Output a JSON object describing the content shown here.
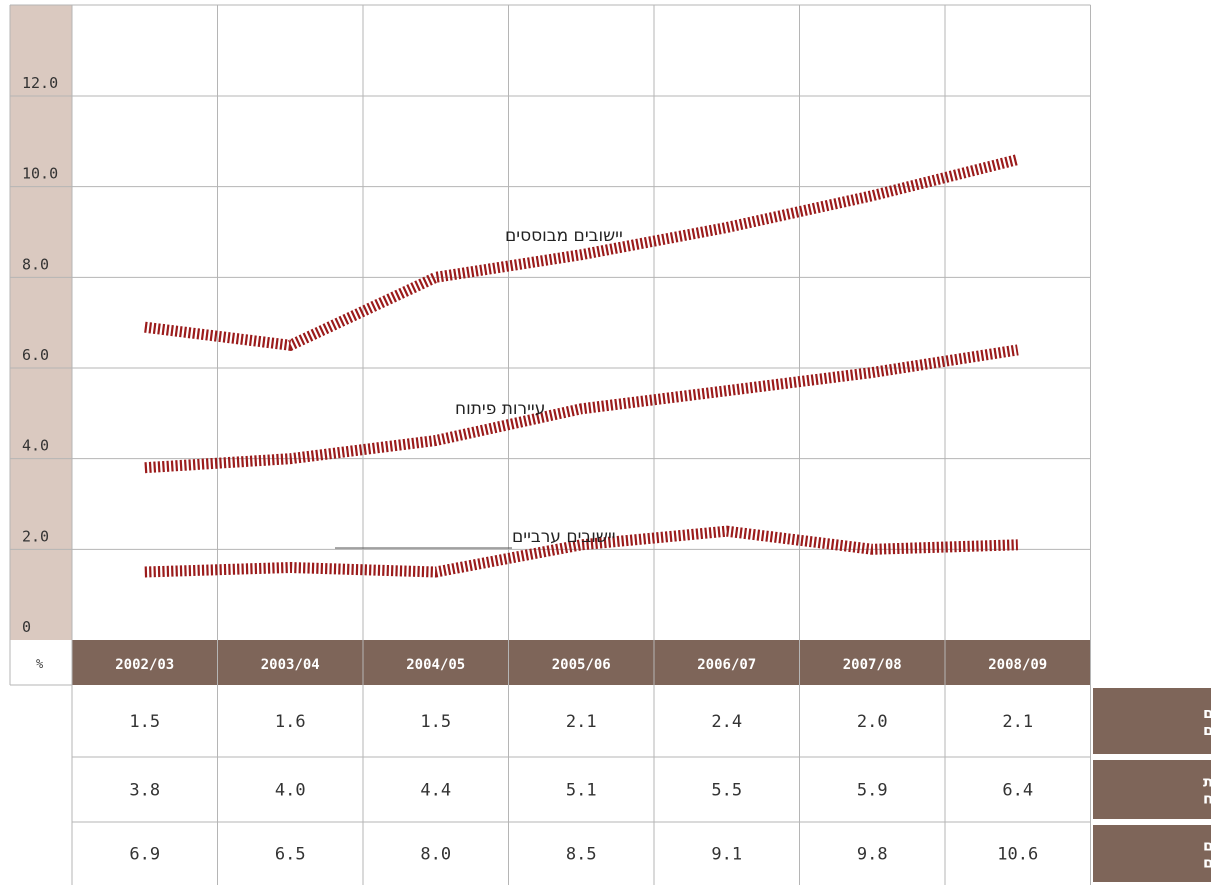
{
  "chart_data": {
    "type": "line",
    "categories": [
      "2002/03",
      "2003/04",
      "2004/05",
      "2005/06",
      "2006/07",
      "2007/08",
      "2008/09"
    ],
    "y_unit_label": "%",
    "yticks": [
      "0",
      "2.0",
      "4.0",
      "6.0",
      "8.0",
      "10.0",
      "12.0"
    ],
    "ylim": [
      0,
      12.0
    ],
    "grid": true,
    "colors": {
      "line": "#9b1b1b",
      "axis_band": "#dac9c0",
      "header_band": "#7e6559",
      "grid": "#b5b5b5"
    },
    "series": [
      {
        "name": "יישובים ערביים",
        "values": [
          1.5,
          1.6,
          1.5,
          2.1,
          2.4,
          2.0,
          2.1
        ],
        "table_label_lines": [
          "יישובים",
          "ערביים"
        ]
      },
      {
        "name": "עיירות פיתוח",
        "values": [
          3.8,
          4.0,
          4.4,
          5.1,
          5.5,
          5.9,
          6.4
        ],
        "table_label_lines": [
          "עיירות",
          "פיתוח"
        ]
      },
      {
        "name": "יישובים מבוססים",
        "values": [
          6.9,
          6.5,
          8.0,
          8.5,
          9.1,
          9.8,
          10.6
        ],
        "table_label_lines": [
          "יישובים",
          "מבוססים"
        ]
      }
    ],
    "table": {
      "rows": [
        [
          "1.5",
          "1.6",
          "1.5",
          "2.1",
          "2.4",
          "2.0",
          "2.1"
        ],
        [
          "3.8",
          "4.0",
          "4.4",
          "5.1",
          "5.5",
          "5.9",
          "6.4"
        ],
        [
          "6.9",
          "6.5",
          "8.0",
          "8.5",
          "9.1",
          "9.8",
          "10.6"
        ]
      ]
    }
  }
}
